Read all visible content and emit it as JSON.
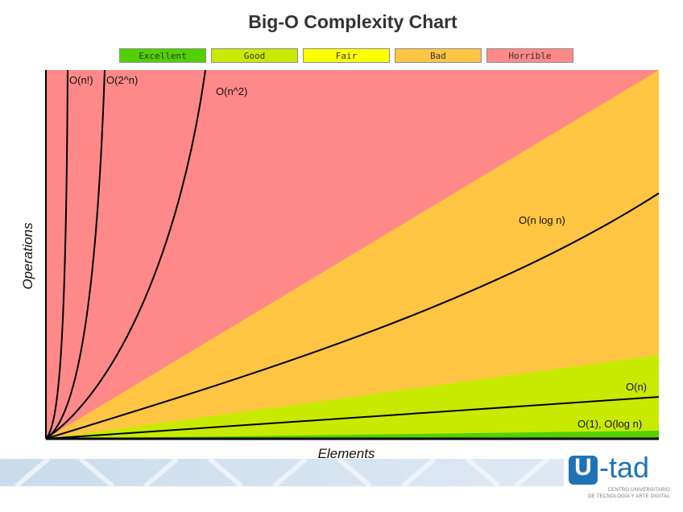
{
  "chart_data": {
    "type": "line",
    "title": "Big-O Complexity Chart",
    "xlabel": "Elements",
    "ylabel": "Operations",
    "legend": [
      {
        "label": "Excellent",
        "color": "#53d000"
      },
      {
        "label": "Good",
        "color": "#c8ea00"
      },
      {
        "label": "Fair",
        "color": "#ffff00"
      },
      {
        "label": "Bad",
        "color": "#ffc543"
      },
      {
        "label": "Horrible",
        "color": "#ff8989"
      }
    ],
    "series": [
      {
        "name": "O(n!)"
      },
      {
        "name": "O(2^n)"
      },
      {
        "name": "O(n^2)"
      },
      {
        "name": "O(n log n)"
      },
      {
        "name": "O(n)"
      },
      {
        "name": "O(1), O(log n)"
      }
    ]
  },
  "logo": {
    "mark": "U",
    "text": "-tad",
    "sub1": "CENTRO UNIVERSITARIO",
    "sub2": "DE TECNOLOGÍA Y ARTE DIGITAL"
  }
}
